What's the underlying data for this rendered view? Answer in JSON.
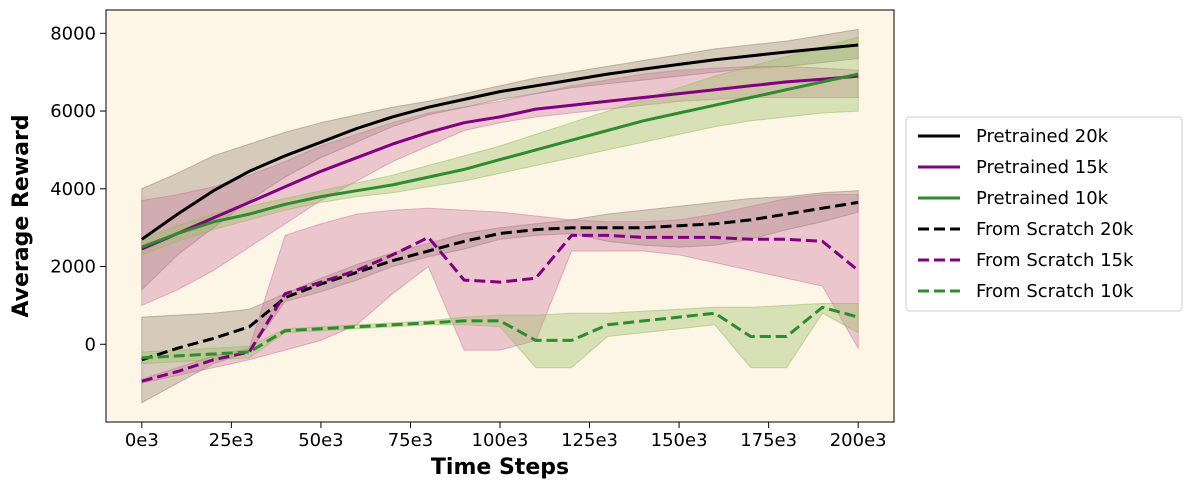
{
  "chart_data": {
    "type": "line",
    "title": "",
    "xlabel": "Time Steps",
    "ylabel": "Average Reward",
    "xlim": [
      -10000,
      210000
    ],
    "ylim": [
      -2000,
      8600
    ],
    "xticks": [
      0,
      25000,
      50000,
      75000,
      100000,
      125000,
      150000,
      175000,
      200000
    ],
    "xtick_labels": [
      "0e3",
      "25e3",
      "50e3",
      "75e3",
      "100e3",
      "125e3",
      "150e3",
      "175e3",
      "200e3"
    ],
    "yticks": [
      0,
      2000,
      4000,
      6000,
      8000
    ],
    "ytick_labels": [
      "0",
      "2000",
      "4000",
      "6000",
      "8000"
    ],
    "grid": false,
    "legend_position": "outside-right",
    "plot_background": "#fdf5e6",
    "series": [
      {
        "name": "Pretrained 20k",
        "color": "#000000",
        "band_color": "#8b7d6b",
        "dash": "solid",
        "x": [
          0,
          10000,
          20000,
          30000,
          40000,
          50000,
          60000,
          70000,
          80000,
          90000,
          100000,
          110000,
          120000,
          130000,
          140000,
          150000,
          160000,
          170000,
          180000,
          190000,
          200000
        ],
        "y": [
          2700,
          3350,
          3950,
          4450,
          4850,
          5200,
          5550,
          5850,
          6100,
          6300,
          6500,
          6650,
          6800,
          6950,
          7080,
          7200,
          7320,
          7420,
          7520,
          7610,
          7700
        ],
        "lower": [
          1400,
          2300,
          3000,
          3700,
          4300,
          4800,
          5200,
          5600,
          5900,
          6100,
          6300,
          6450,
          6600,
          6700,
          6800,
          6900,
          7000,
          7100,
          7150,
          7250,
          7350
        ],
        "upper": [
          4000,
          4400,
          4850,
          5150,
          5450,
          5700,
          5900,
          6100,
          6250,
          6450,
          6650,
          6850,
          7000,
          7150,
          7300,
          7450,
          7600,
          7700,
          7800,
          7950,
          8100
        ]
      },
      {
        "name": "Pretrained 15k",
        "color": "#800080",
        "band_color": "#c8739e",
        "dash": "solid",
        "x": [
          0,
          10000,
          20000,
          30000,
          40000,
          50000,
          60000,
          70000,
          80000,
          90000,
          100000,
          110000,
          120000,
          130000,
          140000,
          150000,
          160000,
          170000,
          180000,
          190000,
          200000
        ],
        "y": [
          2450,
          2850,
          3250,
          3650,
          4050,
          4450,
          4800,
          5150,
          5450,
          5700,
          5850,
          6050,
          6150,
          6250,
          6350,
          6450,
          6550,
          6650,
          6750,
          6820,
          6900
        ],
        "lower": [
          1000,
          1400,
          1900,
          2500,
          3100,
          3700,
          4200,
          4700,
          5100,
          5500,
          5700,
          5850,
          5950,
          6050,
          6150,
          6250,
          6300,
          6350,
          6350,
          6350,
          6350
        ],
        "upper": [
          3700,
          3850,
          4050,
          4350,
          4700,
          5100,
          5400,
          5700,
          5950,
          6100,
          6250,
          6450,
          6650,
          6800,
          6950,
          7050,
          7100,
          7150,
          7150,
          7100,
          7050
        ]
      },
      {
        "name": "Pretrained 10k",
        "color": "#2e8b2e",
        "band_color": "#8fbc5a",
        "dash": "solid",
        "x": [
          0,
          10000,
          20000,
          30000,
          40000,
          50000,
          60000,
          70000,
          80000,
          90000,
          100000,
          110000,
          120000,
          130000,
          140000,
          150000,
          160000,
          170000,
          180000,
          190000,
          200000
        ],
        "y": [
          2500,
          2850,
          3150,
          3350,
          3600,
          3800,
          3950,
          4100,
          4300,
          4500,
          4750,
          5000,
          5250,
          5500,
          5750,
          5950,
          6150,
          6350,
          6550,
          6750,
          6950
        ],
        "lower": [
          2300,
          2650,
          2950,
          3200,
          3450,
          3650,
          3800,
          3900,
          4050,
          4200,
          4400,
          4600,
          4800,
          5000,
          5200,
          5400,
          5600,
          5750,
          5850,
          5950,
          6000
        ],
        "upper": [
          2700,
          3050,
          3350,
          3550,
          3750,
          3950,
          4150,
          4350,
          4600,
          4850,
          5100,
          5400,
          5700,
          6000,
          6300,
          6600,
          6900,
          7150,
          7400,
          7650,
          7900
        ]
      },
      {
        "name": "From Scratch 20k",
        "color": "#000000",
        "band_color": "#8b7d6b",
        "dash": "dashed",
        "x": [
          0,
          10000,
          20000,
          30000,
          40000,
          50000,
          60000,
          70000,
          80000,
          90000,
          100000,
          110000,
          120000,
          130000,
          140000,
          150000,
          160000,
          170000,
          180000,
          190000,
          200000
        ],
        "y": [
          -400,
          -100,
          150,
          450,
          1200,
          1550,
          1850,
          2150,
          2400,
          2650,
          2850,
          2950,
          3000,
          3000,
          3000,
          3050,
          3100,
          3200,
          3350,
          3500,
          3650
        ],
        "lower": [
          -1500,
          -1000,
          -500,
          -200,
          1100,
          1350,
          1650,
          2000,
          2250,
          2450,
          2700,
          2800,
          2850,
          2650,
          2550,
          2500,
          2550,
          2700,
          2950,
          3150,
          3400
        ],
        "upper": [
          700,
          750,
          800,
          900,
          1300,
          1700,
          2050,
          2350,
          2600,
          2850,
          3000,
          3100,
          3200,
          3350,
          3450,
          3550,
          3650,
          3750,
          3800,
          3900,
          3950
        ]
      },
      {
        "name": "From Scratch 15k",
        "color": "#800080",
        "band_color": "#c8739e",
        "dash": "dashed",
        "x": [
          0,
          10000,
          20000,
          30000,
          40000,
          50000,
          60000,
          70000,
          80000,
          90000,
          100000,
          110000,
          120000,
          130000,
          140000,
          150000,
          160000,
          170000,
          180000,
          190000,
          200000
        ],
        "y": [
          -950,
          -700,
          -400,
          -200,
          1300,
          1600,
          1900,
          2300,
          2750,
          1650,
          1600,
          1700,
          2800,
          2800,
          2750,
          2750,
          2750,
          2700,
          2700,
          2650,
          1900
        ],
        "lower": [
          -1000,
          -800,
          -600,
          -400,
          -150,
          100,
          500,
          1300,
          2000,
          -150,
          -150,
          100,
          2400,
          2400,
          2400,
          2300,
          2100,
          1900,
          1700,
          1500,
          -100
        ],
        "upper": [
          -900,
          -600,
          -300,
          -100,
          2800,
          3100,
          3350,
          3450,
          3500,
          3450,
          3400,
          3300,
          3200,
          3150,
          3150,
          3200,
          3350,
          3550,
          3750,
          3850,
          3850
        ]
      },
      {
        "name": "From Scratch 10k",
        "color": "#2e8b2e",
        "band_color": "#8fbc5a",
        "dash": "dashed",
        "x": [
          0,
          10000,
          20000,
          30000,
          40000,
          50000,
          60000,
          70000,
          80000,
          90000,
          100000,
          110000,
          120000,
          130000,
          140000,
          150000,
          160000,
          170000,
          180000,
          190000,
          200000
        ],
        "y": [
          -350,
          -300,
          -250,
          -200,
          350,
          400,
          450,
          500,
          550,
          600,
          600,
          100,
          100,
          500,
          600,
          700,
          800,
          200,
          200,
          950,
          700
        ],
        "lower": [
          -500,
          -450,
          -400,
          -350,
          300,
          350,
          400,
          450,
          500,
          500,
          450,
          -600,
          -600,
          200,
          300,
          400,
          500,
          -600,
          -600,
          800,
          300
        ],
        "upper": [
          -200,
          -150,
          -100,
          -50,
          400,
          450,
          500,
          550,
          600,
          700,
          750,
          750,
          800,
          800,
          850,
          900,
          950,
          950,
          1000,
          1050,
          1050
        ]
      }
    ]
  }
}
